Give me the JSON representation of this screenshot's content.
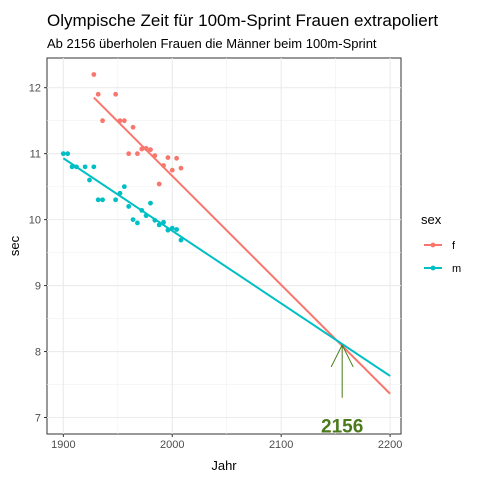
{
  "chart_data": {
    "type": "scatter",
    "title": "Olympische Zeit für 100m-Sprint Frauen extrapoliert",
    "subtitle": "Ab 2156 überholen Frauen die Männer beim 100m-Sprint",
    "xlabel": "Jahr",
    "ylabel": "sec",
    "xlim": [
      1885,
      2210
    ],
    "ylim": [
      6.75,
      12.45
    ],
    "xticks": [
      1900,
      2000,
      2100,
      2200
    ],
    "yticks": [
      7,
      8,
      9,
      10,
      11,
      12
    ],
    "grid": true,
    "legend": {
      "title": "sex",
      "placement": "right",
      "entries": [
        "f",
        "m"
      ]
    },
    "series": [
      {
        "name": "f",
        "color": "#F8766D",
        "points": [
          [
            1928,
            12.2
          ],
          [
            1932,
            11.9
          ],
          [
            1936,
            11.5
          ],
          [
            1948,
            11.9
          ],
          [
            1952,
            11.5
          ],
          [
            1956,
            11.5
          ],
          [
            1960,
            11.0
          ],
          [
            1964,
            11.4
          ],
          [
            1968,
            11.0
          ],
          [
            1972,
            11.07
          ],
          [
            1976,
            11.08
          ],
          [
            1980,
            11.06
          ],
          [
            1984,
            10.97
          ],
          [
            1988,
            10.54
          ],
          [
            1992,
            10.82
          ],
          [
            1996,
            10.94
          ],
          [
            2000,
            10.75
          ],
          [
            2004,
            10.93
          ],
          [
            2008,
            10.78
          ]
        ],
        "trend": [
          [
            1928,
            11.85
          ],
          [
            2200,
            7.36
          ]
        ]
      },
      {
        "name": "m",
        "color": "#00BFC4",
        "points": [
          [
            1900,
            11.0
          ],
          [
            1904,
            11.0
          ],
          [
            1908,
            10.8
          ],
          [
            1912,
            10.8
          ],
          [
            1920,
            10.8
          ],
          [
            1924,
            10.6
          ],
          [
            1928,
            10.8
          ],
          [
            1932,
            10.3
          ],
          [
            1936,
            10.3
          ],
          [
            1948,
            10.3
          ],
          [
            1952,
            10.4
          ],
          [
            1956,
            10.5
          ],
          [
            1960,
            10.2
          ],
          [
            1964,
            10.0
          ],
          [
            1968,
            9.95
          ],
          [
            1972,
            10.14
          ],
          [
            1976,
            10.06
          ],
          [
            1980,
            10.25
          ],
          [
            1984,
            9.99
          ],
          [
            1988,
            9.92
          ],
          [
            1992,
            9.96
          ],
          [
            1996,
            9.84
          ],
          [
            2000,
            9.87
          ],
          [
            2004,
            9.85
          ],
          [
            2008,
            9.69
          ]
        ],
        "trend": [
          [
            1900,
            10.93
          ],
          [
            2200,
            7.63
          ]
        ]
      }
    ],
    "annotation": {
      "label": "2156",
      "point": [
        2156,
        8.1
      ],
      "tail": [
        2156,
        7.3
      ],
      "color": "#4a7a1a"
    }
  }
}
